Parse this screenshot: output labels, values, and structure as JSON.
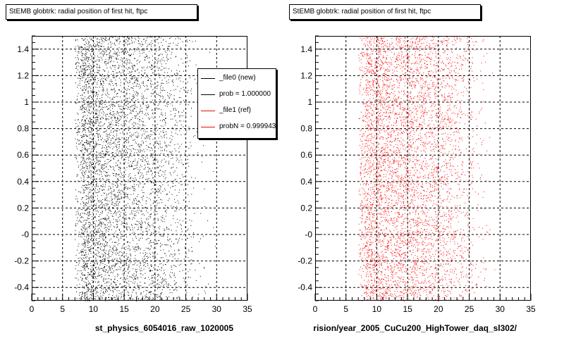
{
  "chart_data": [
    {
      "type": "scatter",
      "title": "StEMB globtrk: radial position of first hit, ftpc",
      "xlabel": "st_physics_6054016_raw_1020005",
      "ylabel": "",
      "xlim": [
        0,
        35
      ],
      "ylim": [
        -0.5,
        1.5
      ],
      "x_ticks": [
        "0",
        "5",
        "10",
        "15",
        "20",
        "25",
        "30",
        "35"
      ],
      "y_ticks": [
        "-0.4",
        "-0.2",
        "-0",
        "0.2",
        "0.4",
        "0.6",
        "0.8",
        "1",
        "1.2",
        "1.4"
      ],
      "grid": true,
      "marker_color": "#000000",
      "point_density": {
        "x": [
          7,
          8,
          9,
          10,
          12,
          14,
          16,
          18,
          20,
          22,
          24,
          26,
          28,
          30
        ],
        "weight": [
          0,
          8,
          10,
          8,
          6.5,
          5.5,
          5,
          4.5,
          4,
          3,
          1.8,
          0.7,
          0.2,
          0
        ]
      },
      "legend": {
        "position": "top-right",
        "entries": [
          {
            "label": "_file0 (new)",
            "color": "#000000"
          },
          {
            "label": "prob = 1.000000",
            "color": "#000000"
          },
          {
            "label": "_file1 (ref)",
            "color": "#ff0000"
          },
          {
            "label": "probN = 0.999943",
            "color": "#ff0000"
          }
        ]
      }
    },
    {
      "type": "scatter",
      "title": "StEMB globtrk: radial position of first hit, ftpc",
      "xlabel": "rision/year_2005_CuCu200_HighTower_daq_sl302/",
      "ylabel": "",
      "xlim": [
        0,
        35
      ],
      "ylim": [
        -0.5,
        1.5
      ],
      "x_ticks": [
        "0",
        "5",
        "10",
        "15",
        "20",
        "25",
        "30",
        "35"
      ],
      "y_ticks": [
        "-0.4",
        "-0.2",
        "-0",
        "0.2",
        "0.4",
        "0.6",
        "0.8",
        "1",
        "1.2",
        "1.4"
      ],
      "grid": true,
      "marker_color": "#ff0000",
      "point_density": {
        "x": [
          7,
          8,
          9,
          10,
          12,
          14,
          16,
          18,
          20,
          22,
          24,
          26,
          28,
          30
        ],
        "weight": [
          0,
          6,
          8,
          7,
          6,
          5.5,
          5,
          4.5,
          4,
          3,
          1.8,
          0.7,
          0.2,
          0
        ]
      }
    }
  ]
}
